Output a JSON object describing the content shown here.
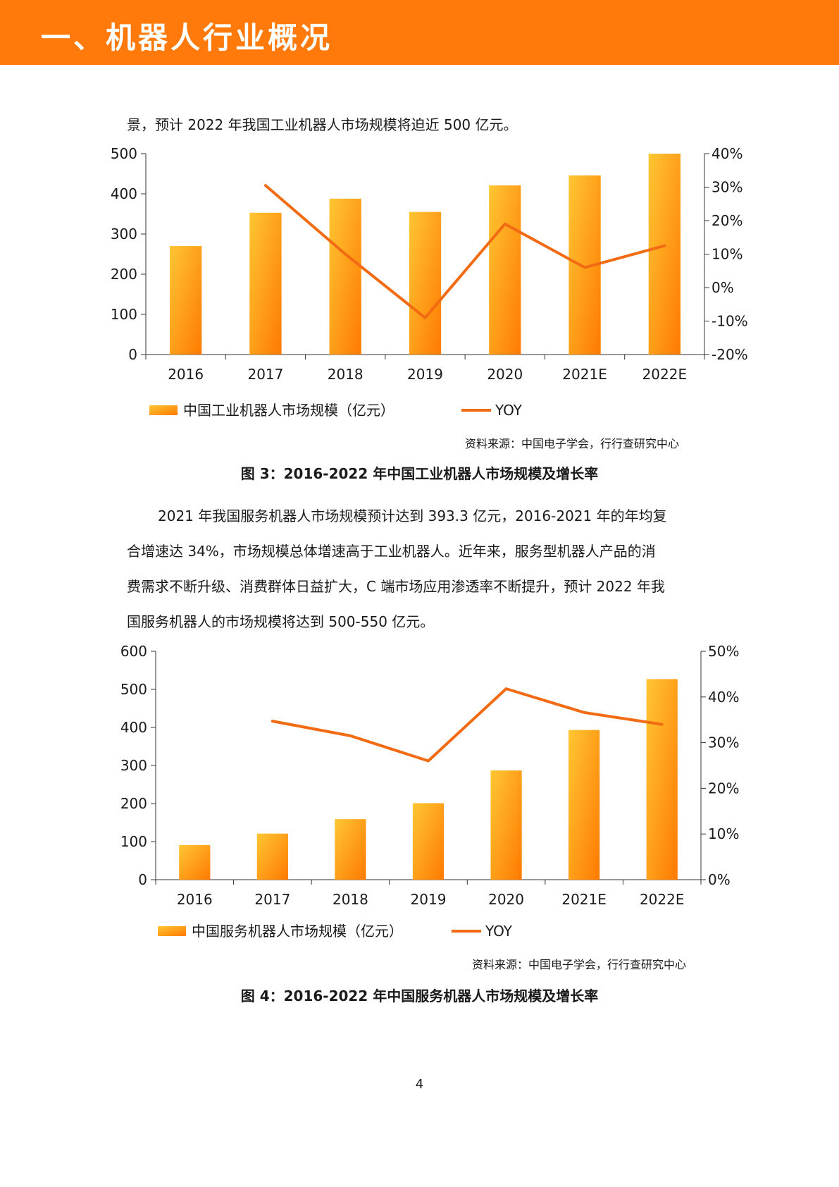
{
  "header": {
    "title": "一、机器人行业概况"
  },
  "intro_paragraph": "景，预计 2022 年我国工业机器人市场规模将迫近 500 亿元。",
  "figure3": {
    "source": "资料来源：中国电子学会，行行查研究中心",
    "caption": "图 3：2016-2022 年中国工业机器人市场规模及增长率"
  },
  "body_paragraph": {
    "lines": [
      "2021 年我国服务机器人市场规模预计达到 393.3 亿元，2016-2021 年的年均复",
      "合增速达 34%，市场规模总体增速高于工业机器人。近年来，服务型机器人产品的消",
      "费需求不断升级、消费群体日益扩大，C 端市场应用渗透率不断提升，预计 2022 年我",
      "国服务机器人的市场规模将达到 500-550 亿元。"
    ]
  },
  "figure4": {
    "source": "资料来源：中国电子学会，行行查研究中心",
    "caption": "图 4：2016-2022 年中国服务机器人市场规模及增长率"
  },
  "page_number": "4",
  "colors": {
    "banner": "#ff7a0a",
    "bar_light": "#ffc633",
    "bar_dark": "#ff7a00",
    "line": "#f26b13"
  },
  "chart_data": [
    {
      "type": "bar",
      "title": "",
      "categories": [
        "2016",
        "2017",
        "2018",
        "2019",
        "2020",
        "2021E",
        "2022E"
      ],
      "series": [
        {
          "name": "中国工业机器人市场规模（亿元）",
          "type": "bar",
          "axis": "left",
          "values": [
            270,
            353,
            388,
            355,
            421,
            446,
            500
          ]
        },
        {
          "name": "YOY",
          "type": "line",
          "axis": "right",
          "values": [
            null,
            30.5,
            10.0,
            -9.0,
            19.0,
            6.0,
            12.5
          ]
        }
      ],
      "y_left": {
        "range": [
          0,
          500
        ],
        "ticks": [
          "0",
          "100",
          "200",
          "300",
          "400",
          "500"
        ]
      },
      "y_right": {
        "range": [
          -20,
          40
        ],
        "ticks": [
          "-20%",
          "-10%",
          "0%",
          "10%",
          "20%",
          "30%",
          "40%"
        ]
      },
      "legend_position": "bottom",
      "grid": false
    },
    {
      "type": "bar",
      "title": "",
      "categories": [
        "2016",
        "2017",
        "2018",
        "2019",
        "2020",
        "2021E",
        "2022E"
      ],
      "series": [
        {
          "name": "中国服务机器人市场规模（亿元）",
          "type": "bar",
          "axis": "left",
          "values": [
            91,
            121,
            159,
            201,
            287,
            393.3,
            527
          ]
        },
        {
          "name": "YOY",
          "type": "line",
          "axis": "right",
          "values": [
            null,
            34.7,
            31.5,
            26.0,
            41.8,
            36.6,
            34.0
          ]
        }
      ],
      "y_left": {
        "range": [
          0,
          600
        ],
        "ticks": [
          "0",
          "100",
          "200",
          "300",
          "400",
          "500",
          "600"
        ]
      },
      "y_right": {
        "range": [
          0,
          50
        ],
        "ticks": [
          "0%",
          "10%",
          "20%",
          "30%",
          "40%",
          "50%"
        ]
      },
      "legend_position": "bottom",
      "grid": false
    }
  ]
}
